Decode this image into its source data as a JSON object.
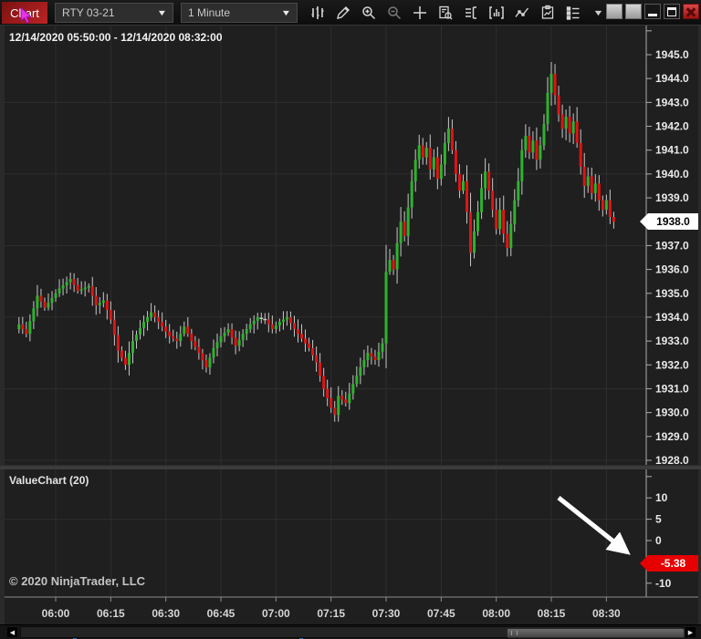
{
  "toolbar": {
    "tab_label": "Chart",
    "instrument": "RTY 03-21",
    "interval": "1 Minute",
    "icon_names": [
      "price-bars",
      "drawing-tools",
      "zoom-in",
      "zoom-out",
      "crosshair",
      "data-box",
      "chart-trader",
      "indicators",
      "strategies",
      "snapshot",
      "properties",
      "more"
    ],
    "window_buttons": [
      "blank",
      "blank",
      "minimize",
      "maximize",
      "close"
    ]
  },
  "icons": {
    "dropdown_chevron": "▼",
    "caret_more": "▼",
    "scroll_left": "◀",
    "scroll_right": "▶"
  },
  "chart": {
    "range_label": "12/14/2020 05:50:00 - 12/14/2020 08:32:00"
  },
  "chart_data": {
    "type": "candlestick",
    "instrument": "RTY 03-21",
    "interval": "1 Minute",
    "visible_start": "05:50",
    "visible_end": "08:32",
    "last_price": "1938.0",
    "y_axis": {
      "min": 1928.0,
      "max": 1945.0,
      "tick_step": 1.0,
      "gridline_step": 3.0,
      "labels": [
        "1945.0",
        "1944.0",
        "1943.0",
        "1942.0",
        "1941.0",
        "1940.0",
        "1939.0",
        "1938.0",
        "1937.0",
        "1936.0",
        "1935.0",
        "1934.0",
        "1933.0",
        "1932.0",
        "1931.0",
        "1930.0",
        "1929.0",
        "1928.0"
      ]
    },
    "x_ticks": [
      "06:00",
      "06:15",
      "06:30",
      "06:45",
      "07:00",
      "07:15",
      "07:30",
      "07:45",
      "08:00",
      "08:15",
      "08:30"
    ],
    "price_keypoints": [
      [
        0,
        1933.7
      ],
      [
        2,
        1933.3
      ],
      [
        5,
        1934.9
      ],
      [
        7,
        1934.4
      ],
      [
        11,
        1935.2
      ],
      [
        14,
        1935.6
      ],
      [
        16,
        1935.1
      ],
      [
        19,
        1935.3
      ],
      [
        21,
        1934.5
      ],
      [
        23,
        1934.7
      ],
      [
        25,
        1933.9
      ],
      [
        27,
        1932.6
      ],
      [
        29,
        1932.0
      ],
      [
        31,
        1933.0
      ],
      [
        34,
        1933.8
      ],
      [
        36,
        1934.2
      ],
      [
        38,
        1933.8
      ],
      [
        41,
        1933.2
      ],
      [
        43,
        1933.0
      ],
      [
        45,
        1933.6
      ],
      [
        47,
        1933.0
      ],
      [
        49,
        1932.5
      ],
      [
        51,
        1931.9
      ],
      [
        53,
        1932.7
      ],
      [
        55,
        1933.2
      ],
      [
        57,
        1933.5
      ],
      [
        59,
        1932.8
      ],
      [
        61,
        1933.3
      ],
      [
        63,
        1933.7
      ],
      [
        65,
        1934.0
      ],
      [
        67,
        1933.9
      ],
      [
        69,
        1933.5
      ],
      [
        71,
        1933.8
      ],
      [
        73,
        1934.0
      ],
      [
        75,
        1933.5
      ],
      [
        77,
        1933.1
      ],
      [
        79,
        1932.7
      ],
      [
        81,
        1932.1
      ],
      [
        83,
        1931.0
      ],
      [
        85,
        1930.2
      ],
      [
        86,
        1929.9
      ],
      [
        87,
        1930.7
      ],
      [
        89,
        1930.4
      ],
      [
        91,
        1931.2
      ],
      [
        93,
        1931.9
      ],
      [
        95,
        1932.5
      ],
      [
        97,
        1932.2
      ],
      [
        99,
        1932.9
      ],
      [
        100,
        1935.9
      ],
      [
        101,
        1936.4
      ],
      [
        102,
        1936.0
      ],
      [
        103,
        1937.1
      ],
      [
        104,
        1938.0
      ],
      [
        105,
        1937.4
      ],
      [
        106,
        1938.6
      ],
      [
        107,
        1939.7
      ],
      [
        108,
        1940.6
      ],
      [
        109,
        1941.2
      ],
      [
        110,
        1940.7
      ],
      [
        111,
        1941.1
      ],
      [
        112,
        1940.2
      ],
      [
        113,
        1940.7
      ],
      [
        114,
        1939.8
      ],
      [
        115,
        1940.4
      ],
      [
        116,
        1941.3
      ],
      [
        117,
        1941.9
      ],
      [
        118,
        1941.0
      ],
      [
        119,
        1940.0
      ],
      [
        120,
        1939.3
      ],
      [
        121,
        1939.7
      ],
      [
        122,
        1938.4
      ],
      [
        123,
        1936.7
      ],
      [
        124,
        1937.6
      ],
      [
        125,
        1938.4
      ],
      [
        126,
        1939.4
      ],
      [
        127,
        1940.1
      ],
      [
        128,
        1939.3
      ],
      [
        129,
        1938.5
      ],
      [
        130,
        1937.7
      ],
      [
        131,
        1938.5
      ],
      [
        132,
        1937.5
      ],
      [
        133,
        1936.9
      ],
      [
        134,
        1937.9
      ],
      [
        135,
        1938.9
      ],
      [
        136,
        1939.7
      ],
      [
        137,
        1941.0
      ],
      [
        138,
        1941.6
      ],
      [
        139,
        1940.9
      ],
      [
        140,
        1941.4
      ],
      [
        141,
        1940.6
      ],
      [
        142,
        1941.2
      ],
      [
        143,
        1942.1
      ],
      [
        144,
        1943.4
      ],
      [
        145,
        1944.2
      ],
      [
        146,
        1943.3
      ],
      [
        147,
        1942.5
      ],
      [
        148,
        1941.9
      ],
      [
        149,
        1942.4
      ],
      [
        150,
        1941.7
      ],
      [
        151,
        1942.2
      ],
      [
        152,
        1941.3
      ],
      [
        153,
        1940.3
      ],
      [
        154,
        1939.5
      ],
      [
        155,
        1939.9
      ],
      [
        156,
        1939.2
      ],
      [
        157,
        1939.6
      ],
      [
        158,
        1938.9
      ],
      [
        159,
        1938.5
      ],
      [
        160,
        1938.9
      ],
      [
        161,
        1938.2
      ],
      [
        162,
        1938.0
      ]
    ],
    "colors": {
      "up": "#2db32d",
      "down": "#e01414",
      "wick": "#c8c8c8",
      "grid": "#2e2e2e",
      "axis": "#aeaeae",
      "price_marker_bg": "#ffffff",
      "value_marker_bg": "#e60000",
      "tab_red": "#b02020",
      "cursor_magenta": "#ea30ea",
      "annotation_arrow": "#ffffff"
    }
  },
  "subpanel": {
    "label": "ValueChart (20)",
    "copyright": "© 2020 NinjaTrader, LLC",
    "last_value": "-5.38",
    "axis_ticks": [
      {
        "value": 10,
        "label": "10"
      },
      {
        "value": 5,
        "label": "5"
      },
      {
        "value": 0,
        "label": "0"
      },
      {
        "value": -10,
        "label": "-10"
      }
    ]
  }
}
